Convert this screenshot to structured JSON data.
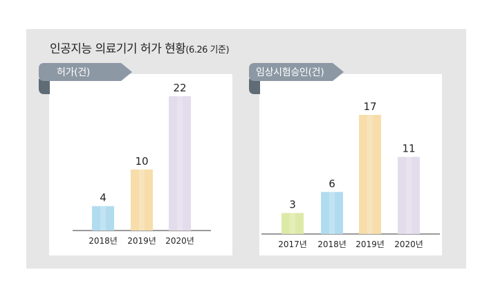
{
  "title": {
    "main": "인공지능 의료기기 허가 현황",
    "note": "(6.26 기준)"
  },
  "colors": {
    "frame": "#e6e6e6",
    "ribbon": "#8c98a3",
    "ribbon_fold": "#5f6b75",
    "bar_2017": "#dde9a6",
    "bar_2018": "#b1dbee",
    "bar_2019": "#f7dda9",
    "bar_2020": "#e3dcec"
  },
  "chart_data": [
    {
      "type": "bar",
      "title": "허가(건)",
      "categories": [
        "2018년",
        "2019년",
        "2020년"
      ],
      "values": [
        4,
        10,
        22
      ],
      "ylim": [
        0,
        22
      ],
      "grid": false
    },
    {
      "type": "bar",
      "title": "임상시험승인(건)",
      "categories": [
        "2017년",
        "2018년",
        "2019년",
        "2020년"
      ],
      "values": [
        3,
        6,
        17,
        11
      ],
      "ylim": [
        0,
        17
      ],
      "grid": false
    }
  ]
}
